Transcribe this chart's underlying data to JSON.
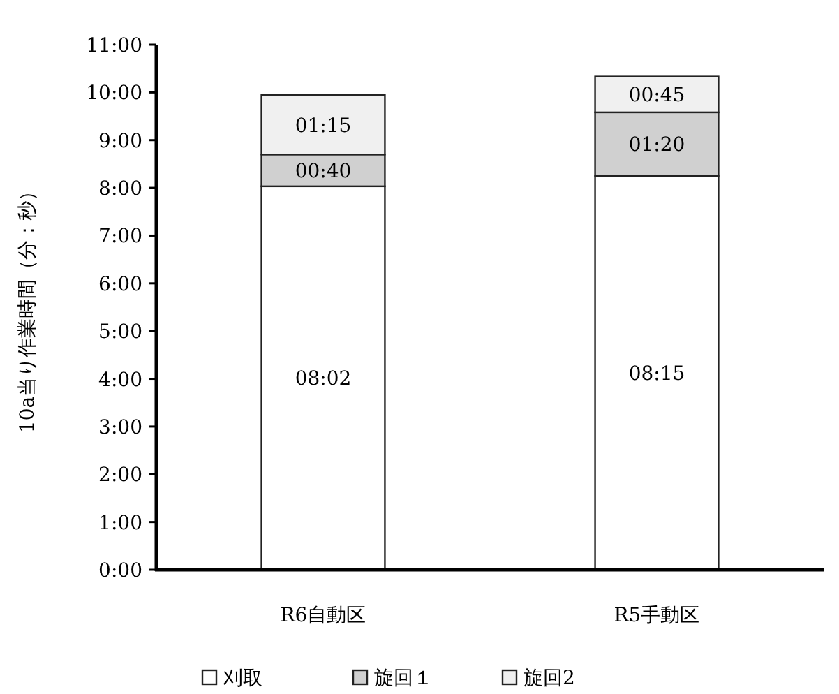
{
  "chart_data": {
    "type": "bar",
    "stacked": true,
    "ylabel": "10a当り作業時間（分：秒）",
    "categories": [
      "R6自動区",
      "R5手動区"
    ],
    "series": [
      {
        "name": "刈取",
        "color": "#ffffff",
        "values": [
          8.033,
          8.25
        ],
        "value_labels": [
          "08:02",
          "08:15"
        ]
      },
      {
        "name": "旋回１",
        "color": "#d0d0d0",
        "values": [
          0.667,
          1.333
        ],
        "value_labels": [
          "00:40",
          "01:20"
        ]
      },
      {
        "name": "旋回2",
        "color": "#f0f0f0",
        "values": [
          1.25,
          0.75
        ],
        "value_labels": [
          "01:15",
          "00:45"
        ]
      }
    ],
    "ylim": [
      0,
      11
    ],
    "yticks": [
      {
        "value": 0,
        "label": "0:00"
      },
      {
        "value": 1,
        "label": "1:00"
      },
      {
        "value": 2,
        "label": "2:00"
      },
      {
        "value": 3,
        "label": "3:00"
      },
      {
        "value": 4,
        "label": "4:00"
      },
      {
        "value": 5,
        "label": "5:00"
      },
      {
        "value": 6,
        "label": "6:00"
      },
      {
        "value": 7,
        "label": "7:00"
      },
      {
        "value": 8,
        "label": "8:00"
      },
      {
        "value": 9,
        "label": "9:00"
      },
      {
        "value": 10,
        "label": "10:00"
      },
      {
        "value": 11,
        "label": "11:00"
      }
    ],
    "grid": false,
    "legend": "bottom"
  }
}
